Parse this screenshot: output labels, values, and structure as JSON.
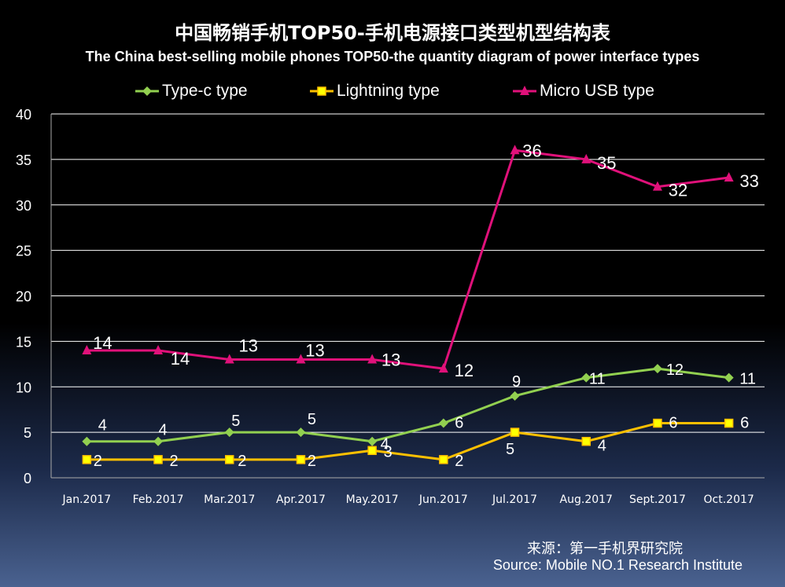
{
  "title_cn": "中国畅销手机TOP50-手机电源接口类型机型结构表",
  "title_en": "The China best-selling mobile phones TOP50-the quantity diagram of power interface types",
  "source_cn": "来源：第一手机界研究院",
  "source_en": "Source: Mobile NO.1 Research Institute",
  "colors": {
    "typec": "#92d050",
    "lightning": "#ffc000",
    "microusb": "#e0117a",
    "grid": "#ffffff",
    "text": "#ffffff"
  },
  "chart_data": {
    "type": "line",
    "title": "中国畅销手机TOP50-手机电源接口类型机型结构表",
    "xlabel": "",
    "ylabel": "",
    "ylim": [
      0,
      40
    ],
    "yticks": [
      0,
      5,
      10,
      15,
      20,
      25,
      30,
      35,
      40
    ],
    "grid": true,
    "legend": "top",
    "categories": [
      "Jan.2017",
      "Feb.2017",
      "Mar.2017",
      "Apr.2017",
      "May.2017",
      "Jun.2017",
      "Jul.2017",
      "Aug.2017",
      "Sept.2017",
      "Oct.2017"
    ],
    "series": [
      {
        "name": "Type-c type",
        "marker": "diamond",
        "color": "#92d050",
        "values": [
          4,
          4,
          5,
          5,
          4,
          6,
          9,
          11,
          12,
          11
        ]
      },
      {
        "name": "Lightning type",
        "marker": "square",
        "color": "#ffc000",
        "values": [
          2,
          2,
          2,
          2,
          3,
          2,
          5,
          4,
          6,
          6
        ]
      },
      {
        "name": "Micro USB type",
        "marker": "triangle",
        "color": "#e0117a",
        "values": [
          14,
          14,
          13,
          13,
          13,
          12,
          36,
          35,
          32,
          33
        ]
      }
    ]
  }
}
